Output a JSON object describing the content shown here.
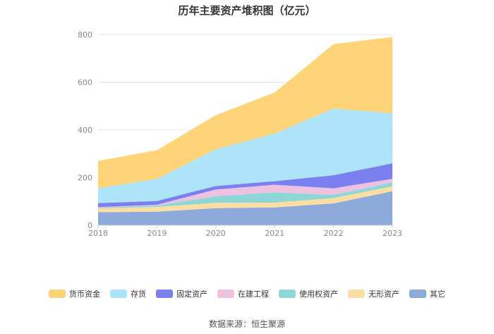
{
  "source": "数据来源：恒生聚源",
  "chart_data": {
    "type": "area",
    "stacked": true,
    "title": "历年主要资产堆积图（亿元）",
    "x": [
      "2018",
      "2019",
      "2020",
      "2021",
      "2022",
      "2023"
    ],
    "ylim": [
      0,
      800
    ],
    "yticks": [
      "0",
      "200",
      "400",
      "600",
      "800"
    ],
    "grid": true,
    "legend_position": "bottom",
    "series": [
      {
        "name": "其它",
        "color": "#8eaadb",
        "values": [
          55,
          57,
          72,
          75,
          92,
          143
        ]
      },
      {
        "name": "无形资产",
        "color": "#fddea2",
        "values": [
          15,
          20,
          22,
          20,
          22,
          20
        ]
      },
      {
        "name": "使用权资产",
        "color": "#8fd6d6",
        "values": [
          3,
          6,
          28,
          43,
          13,
          17
        ]
      },
      {
        "name": "在建工程",
        "color": "#ecc2e0",
        "values": [
          3,
          3,
          28,
          32,
          28,
          15
        ]
      },
      {
        "name": "固定资产",
        "color": "#7b7ff0",
        "values": [
          17,
          16,
          15,
          15,
          55,
          65
        ]
      },
      {
        "name": "存货",
        "color": "#ade4fa",
        "values": [
          62,
          93,
          154,
          200,
          280,
          210
        ]
      },
      {
        "name": "货币资金",
        "color": "#ffd479",
        "values": [
          115,
          120,
          143,
          172,
          270,
          320
        ]
      }
    ],
    "legend_order": [
      "货币资金",
      "存货",
      "固定资产",
      "在建工程",
      "使用权资产",
      "无形资产",
      "其它"
    ]
  }
}
